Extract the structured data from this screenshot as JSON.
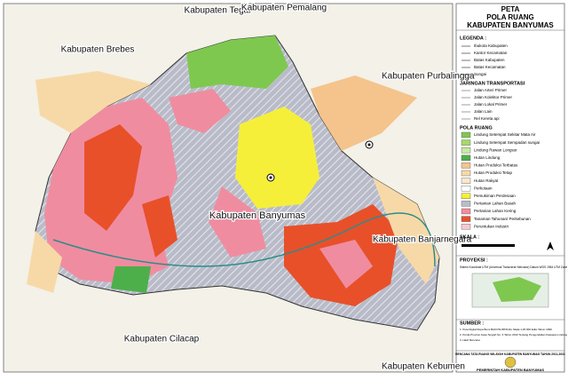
{
  "map_labels": [
    "Kabupaten Tegal",
    "Kabupaten Pemalang",
    "Kabupaten Brebes",
    "Kabupaten Purbalingga",
    "Kabupaten Banyumas",
    "Kabupaten Banjarnegara",
    "Kabupaten Cilacap",
    "Kabupaten Kebumen"
  ],
  "title": {
    "line1": "PETA",
    "line2": "POLA RUANG",
    "line3": "KABUPATEN BANYUMAS"
  },
  "legend": {
    "heading": "LEGENDA :",
    "general": [
      "Ibukota Kabupaten",
      "Kantor Kecamatan",
      "Batas Kabupaten",
      "Batas Kecamatan",
      "Sungai"
    ],
    "transport_heading": "JARINGAN TRANSPORTASI",
    "transport": [
      "Jalan Arteri Primer",
      "Jalan Kolektor Primer",
      "Jalan Lokal Primer",
      "Jalan Lain",
      "Rel Kereta api"
    ],
    "pola_heading": "POLA RUANG",
    "pola": [
      {
        "label": "Lindung Setempat Sekitar Mata Air",
        "color": "#7ec850"
      },
      {
        "label": "Lindung Setempat Sempadan sungai",
        "color": "#a6d96a"
      },
      {
        "label": "Lindung Rawan Longsor",
        "color": "#c7e9a0"
      },
      {
        "label": "Hutan Lindung",
        "color": "#4daf4a"
      },
      {
        "label": "Hutan Produksi Terbatas",
        "color": "#f4c48c"
      },
      {
        "label": "Hutan Produksi Tetap",
        "color": "#f7d9a8"
      },
      {
        "label": "Hutan Rakyat",
        "color": "#fbe8c8"
      },
      {
        "label": "Perkotaan",
        "color": "#ffffff"
      },
      {
        "label": "Pemukiman Perdesaan",
        "color": "#f5ef3a"
      },
      {
        "label": "Pertanian Lahan Basah",
        "color": "#b9bcc8"
      },
      {
        "label": "Pertanian Lahan Kering",
        "color": "#f08ca0"
      },
      {
        "label": "Tanaman Tahunan/ Perkebunan",
        "color": "#e8502a"
      },
      {
        "label": "Peruntukan Industri",
        "color": "#f9c9d3"
      }
    ]
  },
  "scale_heading": "SKALA :",
  "projection": {
    "heading": "PROYEKSI :",
    "text": "Sistem Koordinat UTM (Universal Transverse Mercator) Datum WGS 1984 UTM Zone 49 S"
  },
  "sources": {
    "heading": "SUMBER :",
    "items": [
      "1. Peta Digital Rupa Bumi BAKOSURTANAL Skala 1:25.000 Edisi Tahun 1999",
      "2. Perda Provinsi Jawa Tengah No. 6 Tahun 2010 Tentang Pengendalian Kawasan Lindung",
      "3. Hasil Rencana"
    ]
  },
  "footer": {
    "plan": "RENCANA TATA RUANG WILAYAH KABUPATEN BANYUMAS TAHUN 2011-2031",
    "gov": "PEMERINTAH KABUPATEN BANYUMAS"
  }
}
